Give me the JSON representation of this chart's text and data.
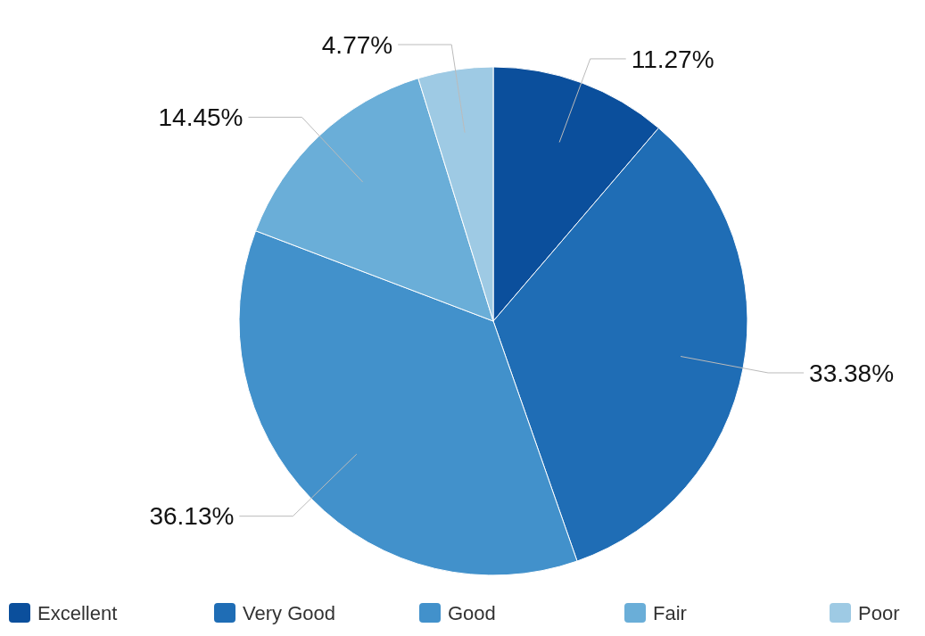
{
  "chart_data": {
    "type": "pie",
    "categories": [
      "Excellent",
      "Very Good",
      "Good",
      "Fair",
      "Poor"
    ],
    "values": [
      11.27,
      33.38,
      36.13,
      14.45,
      4.77
    ],
    "colors": [
      "#0b4f9c",
      "#1f6db5",
      "#4291cb",
      "#6aaed8",
      "#9ecae4"
    ],
    "value_labels": [
      "11.27%",
      "33.38%",
      "36.13%",
      "14.45%",
      "4.77%"
    ],
    "legend": "bottom"
  }
}
